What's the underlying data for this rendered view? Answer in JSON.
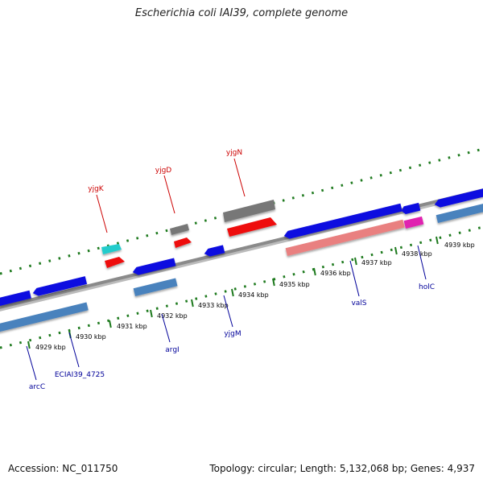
{
  "header": {
    "title": "Escherichia coli IAI39, complete genome"
  },
  "footer": {
    "accession": "Accession: NC_011750",
    "summary": "Topology: circular; Length: 5,132,068 bp; Genes: 4,937"
  },
  "colors": {
    "backbone": "#8a8a8a",
    "tick": "#1e7a1e",
    "gene_blue": "#1010e0",
    "gene_steel": "#4a82bd",
    "gene_red": "#ee1111",
    "gene_pink": "#e98080",
    "gene_gray": "#777777",
    "gene_cyan": "#22cccc",
    "gene_magenta": "#e020b0",
    "label_top": "#cc0000",
    "label_bottom": "#000099"
  },
  "ruler": {
    "ticks": [
      "4929 kbp",
      "4930 kbp",
      "4931 kbp",
      "4932 kbp",
      "4933 kbp",
      "4934 kbp",
      "4935 kbp",
      "4936 kbp",
      "4937 kbp",
      "4938 kbp",
      "4939 kbp"
    ]
  },
  "labels": {
    "top": [
      "yjgK",
      "yjgD",
      "yjgN"
    ],
    "bottom": [
      "arcC",
      "ECIAI39_4725",
      "argI",
      "yjgM",
      "valS",
      "holC"
    ]
  },
  "tracks": [
    {
      "name": "plus-strand",
      "genes": [
        {
          "color": "gene_blue",
          "direction": "left"
        },
        {
          "color": "gene_blue",
          "direction": "left"
        },
        {
          "color": "gene_blue",
          "direction": "left"
        },
        {
          "color": "gene_blue",
          "direction": "left"
        },
        {
          "color": "gene_blue",
          "direction": "right"
        },
        {
          "color": "gene_blue",
          "direction": "left"
        },
        {
          "color": "gene_blue",
          "direction": "left"
        }
      ]
    },
    {
      "name": "minus-strand",
      "genes": [
        {
          "color": "gene_steel"
        },
        {
          "color": "gene_steel"
        },
        {
          "color": "gene_pink"
        },
        {
          "color": "gene_magenta"
        },
        {
          "color": "gene_steel"
        }
      ]
    },
    {
      "name": "rna-features",
      "genes": [
        {
          "color": "gene_cyan"
        },
        {
          "color": "gene_red"
        },
        {
          "color": "gene_gray"
        },
        {
          "color": "gene_red"
        },
        {
          "color": "gene_gray"
        },
        {
          "color": "gene_red"
        }
      ]
    }
  ]
}
